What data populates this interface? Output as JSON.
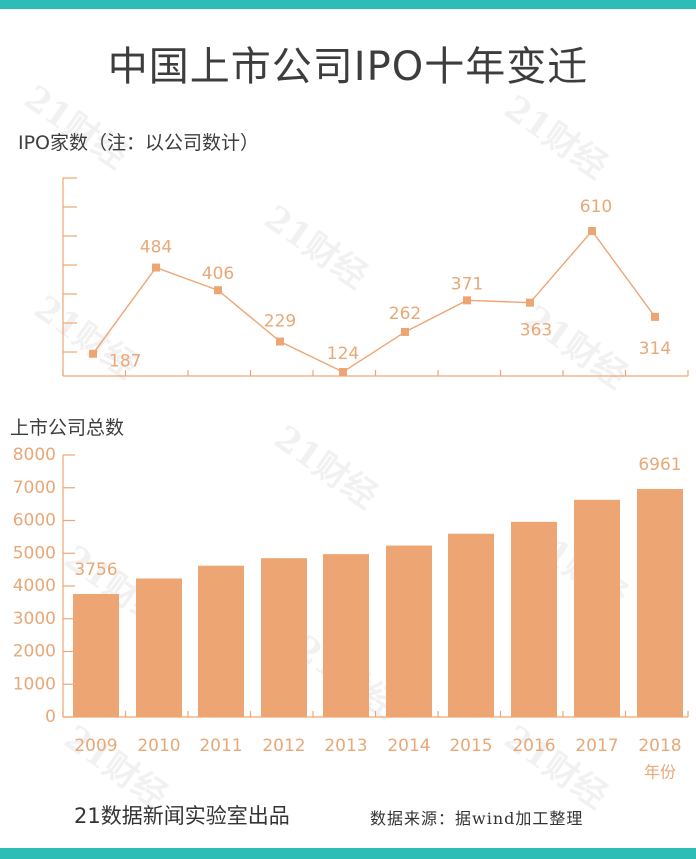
{
  "title": "中国上市公司IPO十年变迁",
  "colors": {
    "teal": "#2bbdb6",
    "orange": "#eda673",
    "axis": "#eda673",
    "text_orange": "#e8a877",
    "text_dark": "#3d3d3d"
  },
  "watermark_text": "21财经",
  "chart_data": [
    {
      "type": "line",
      "title": "IPO家数（注：以公司数计）",
      "x": [
        "2009",
        "2010",
        "2011",
        "2012",
        "2013",
        "2014",
        "2015",
        "2016",
        "2017",
        "2018"
      ],
      "values": [
        187,
        484,
        406,
        229,
        124,
        262,
        371,
        363,
        610,
        314
      ],
      "value_labels": [
        "187",
        "484",
        "406",
        "229",
        "124",
        "262",
        "371",
        "363",
        "610",
        "314"
      ],
      "xlabel": "",
      "ylabel": "",
      "grid": false
    },
    {
      "type": "bar",
      "title": "上市公司总数",
      "categories": [
        "2009",
        "2010",
        "2011",
        "2012",
        "2013",
        "2014",
        "2015",
        "2016",
        "2017",
        "2018"
      ],
      "values": [
        3756,
        4230,
        4620,
        4849,
        4973,
        5235,
        5596,
        5959,
        6631,
        6961
      ],
      "value_labels": [
        "3756",
        "",
        "",
        "",
        "",
        "",
        "",
        "",
        "",
        "6961"
      ],
      "y_ticks": [
        "0",
        "1000",
        "2000",
        "3000",
        "4000",
        "5000",
        "6000",
        "7000",
        "8000"
      ],
      "ylim": [
        0,
        8000
      ],
      "x_suffix_label": "年份",
      "grid": false
    }
  ],
  "footer": {
    "credit": "21数据新闻实验室出品",
    "source": "数据来源：据wind加工整理"
  }
}
